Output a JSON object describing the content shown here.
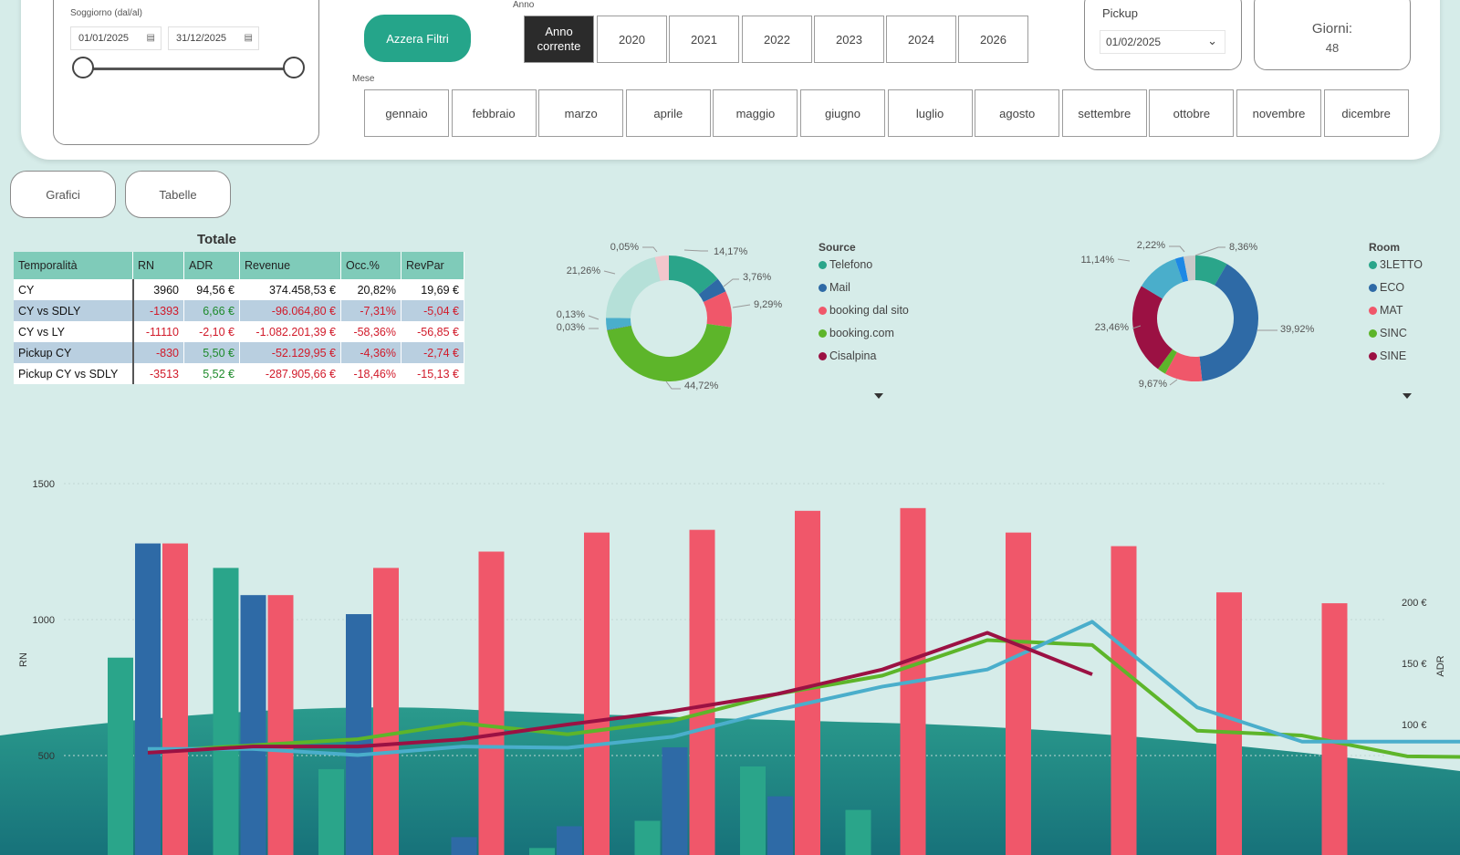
{
  "filters": {
    "stay_label": "Soggiorno (dal/al)",
    "date_from": "01/01/2025",
    "date_to": "31/12/2025",
    "reset_label": "Azzera Filtri",
    "year_label": "Anno",
    "years": [
      "Anno corrente",
      "2020",
      "2021",
      "2022",
      "2023",
      "2024",
      "2026"
    ],
    "month_label": "Mese",
    "months": [
      "gennaio",
      "febbraio",
      "marzo",
      "aprile",
      "maggio",
      "giugno",
      "luglio",
      "agosto",
      "settembre",
      "ottobre",
      "novembre",
      "dicembre"
    ],
    "pickup_label": "Pickup",
    "pickup_value": "01/02/2025",
    "days_label": "Giorni:",
    "days_value": "48"
  },
  "nav": {
    "charts": "Grafici",
    "tables": "Tabelle"
  },
  "totals": {
    "title": "Totale",
    "columns": [
      "Temporalità",
      "RN",
      "ADR",
      "Revenue",
      "Occ.%",
      "RevPar"
    ],
    "rows": [
      [
        "CY",
        "3960",
        "94,56 €",
        "374.458,53 €",
        "20,82%",
        "19,69 €"
      ],
      [
        "CY vs SDLY",
        "-1393",
        "6,66 €",
        "-96.064,80 €",
        "-7,31%",
        "-5,04 €"
      ],
      [
        "CY vs LY",
        "-11110",
        "-2,10 €",
        "-1.082.201,39 €",
        "-58,36%",
        "-56,85 €"
      ],
      [
        "Pickup CY",
        "-830",
        "5,50 €",
        "-52.129,95 €",
        "-4,36%",
        "-2,74 €"
      ],
      [
        "Pickup CY vs SDLY",
        "-3513",
        "5,52 €",
        "-287.905,66 €",
        "-18,46%",
        "-15,13 €"
      ]
    ]
  },
  "source_donut": {
    "legend_title": "Source",
    "legend": [
      {
        "name": "Telefono",
        "color": "#2aa58a"
      },
      {
        "name": "Mail",
        "color": "#2e6aa6"
      },
      {
        "name": "booking dal sito",
        "color": "#f0576a"
      },
      {
        "name": "booking.com",
        "color": "#5db52a"
      },
      {
        "name": "Cisalpina",
        "color": "#9b1143"
      }
    ],
    "labels": [
      "14,17%",
      "3,76%",
      "9,29%",
      "44,72%",
      "0,03%",
      "0,13%",
      "21,26%",
      "0,05%"
    ],
    "slices": [
      {
        "value": 14.17,
        "color": "#2aa58a"
      },
      {
        "value": 3.76,
        "color": "#2e6aa6"
      },
      {
        "value": 9.29,
        "color": "#f0576a"
      },
      {
        "value": 44.72,
        "color": "#5db52a"
      },
      {
        "value": 0.03,
        "color": "#9b1143"
      },
      {
        "value": 0.13,
        "color": "#3a6fb0"
      },
      {
        "value": 3.0,
        "color": "#4aaecb"
      },
      {
        "value": 21.26,
        "color": "#b5e0d8"
      },
      {
        "value": 0.05,
        "color": "#e3a3b0"
      },
      {
        "value": 3.53,
        "color": "#f2c6cc"
      }
    ]
  },
  "room_donut": {
    "legend_title": "Room",
    "legend": [
      {
        "name": "3LETTO",
        "color": "#2aa58a"
      },
      {
        "name": "ECO",
        "color": "#2e6aa6"
      },
      {
        "name": "MAT",
        "color": "#f0576a"
      },
      {
        "name": "SINC",
        "color": "#5db52a"
      },
      {
        "name": "SINE",
        "color": "#9b1143"
      }
    ],
    "labels": [
      "8,36%",
      "39,92%",
      "9,67%",
      "23,46%",
      "11,14%",
      "2,22%"
    ],
    "slices": [
      {
        "value": 8.36,
        "color": "#2aa58a"
      },
      {
        "value": 39.92,
        "color": "#2e6aa6"
      },
      {
        "value": 9.67,
        "color": "#f0576a"
      },
      {
        "value": 2.2,
        "color": "#5db52a"
      },
      {
        "value": 23.46,
        "color": "#9b1143"
      },
      {
        "value": 11.14,
        "color": "#4aaecb"
      },
      {
        "value": 2.22,
        "color": "#1e88e5"
      },
      {
        "value": 3.03,
        "color": "#c9c9c9"
      }
    ]
  },
  "chart_data": {
    "type": "bar",
    "ylabel": "RN",
    "y2label": "ADR",
    "yticks": [
      "1500",
      "1000",
      "500"
    ],
    "y2ticks": [
      "200 €",
      "150 €",
      "100 €"
    ],
    "ylim": [
      0,
      1500
    ],
    "y2lim": [
      100,
      200
    ],
    "series": [
      {
        "color": "#2aa58a",
        "values": [
          860,
          1190,
          450,
          80,
          160,
          260,
          460,
          300,
          30
        ]
      },
      {
        "color": "#2e6aa6",
        "values": [
          1280,
          1090,
          1020,
          200,
          240,
          530,
          350,
          40
        ]
      },
      {
        "color": "#f0576a",
        "values": [
          1280,
          1090,
          1190,
          1250,
          1320,
          1330,
          1400,
          1410,
          1320,
          1270,
          1100,
          1060
        ]
      }
    ],
    "lines": [
      {
        "color": "#5db52a",
        "values": [
          78,
          83,
          88,
          101,
          92,
          103,
          125,
          140,
          169,
          165,
          95,
          91,
          74,
          73,
          70
        ]
      },
      {
        "color": "#4aaecb",
        "values": [
          80,
          80,
          75,
          82,
          81,
          90,
          112,
          131,
          145,
          184,
          114,
          86,
          86,
          86,
          83
        ]
      },
      {
        "color": "#9b1143",
        "values": [
          77,
          82,
          82,
          88,
          100,
          111,
          125,
          145,
          175,
          141
        ]
      }
    ]
  }
}
